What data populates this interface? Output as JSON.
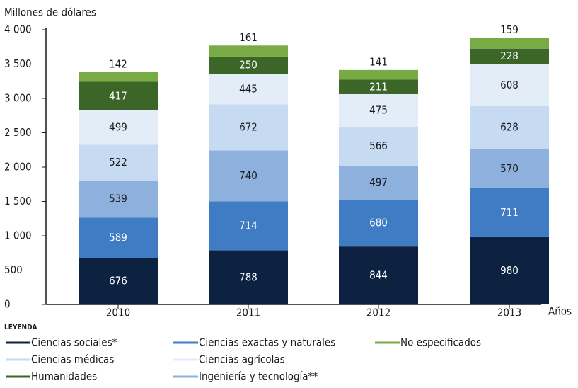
{
  "chart_data": {
    "type": "stacked_bar",
    "y_axis_label": "Millones de dólares",
    "x_axis_label": "Años",
    "legend_title": "LEYENDA",
    "categories": [
      "2010",
      "2011",
      "2012",
      "2013"
    ],
    "series": [
      {
        "name": "Ciencias sociales*",
        "color": "#0d2240",
        "values": [
          676,
          788,
          844,
          980
        ]
      },
      {
        "name": "Ciencias exactas y naturales",
        "color": "#3f7cc4",
        "values": [
          589,
          714,
          680,
          711
        ]
      },
      {
        "name": "Ingeniería y tecnología**",
        "color": "#8db0dd",
        "values": [
          539,
          740,
          497,
          570
        ]
      },
      {
        "name": "Ciencias médicas",
        "color": "#c6daf1",
        "values": [
          522,
          672,
          566,
          628
        ]
      },
      {
        "name": "Ciencias agrícolas",
        "color": "#e2edf8",
        "values": [
          499,
          445,
          475,
          608
        ]
      },
      {
        "name": "Humanidades",
        "color": "#3c6627",
        "values": [
          417,
          250,
          211,
          228
        ]
      },
      {
        "name": "No especificados",
        "color": "#79ab45",
        "values": [
          142,
          161,
          141,
          159
        ]
      }
    ],
    "ylim": [
      0,
      4000
    ],
    "yticks": [
      0,
      500,
      {
        "value": 1000,
        "label": "1 000"
      },
      {
        "value": 1500,
        "label": "1 500"
      },
      {
        "value": 2000,
        "label": "2 000"
      },
      {
        "value": 2500,
        "label": "2 500"
      },
      {
        "value": 3000,
        "label": "3 000"
      },
      {
        "value": 3500,
        "label": "3 500"
      },
      {
        "value": 4000,
        "label": "4 000"
      }
    ],
    "legend_order": [
      0,
      1,
      6,
      3,
      4,
      5,
      2
    ]
  }
}
